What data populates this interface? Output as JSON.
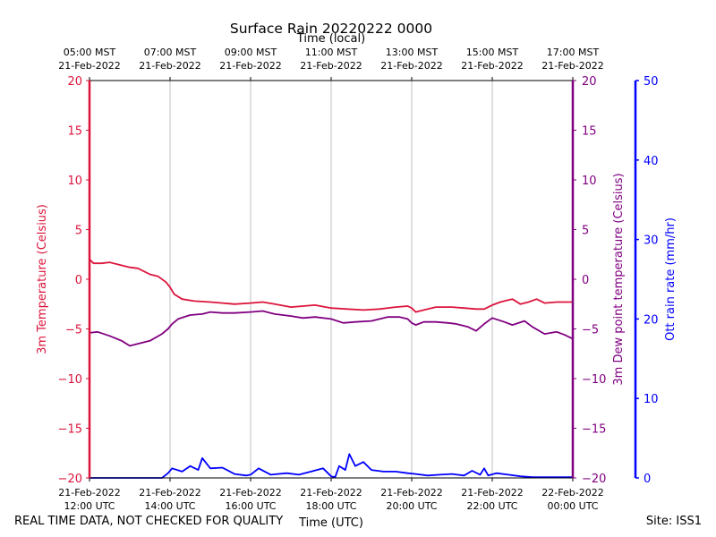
{
  "chart_data": {
    "type": "line",
    "title": "Surface Rain 20220222 0000",
    "top_axis_label": "Time (local)",
    "xlabel": "Time (UTC)",
    "ylabel_left": "3m Temperature (Celsius)",
    "ylabel_right_inner": "3m Dew point temperature (Celsius)",
    "ylabel_right_outer": "Ott rain rate (mm/hr)",
    "xlim_hours_utc": [
      12,
      24
    ],
    "ylim_temperature": [
      -20,
      20
    ],
    "ylim_rain": [
      0,
      50
    ],
    "temp_ticks": [
      20,
      15,
      10,
      5,
      0,
      -5,
      -10,
      -15,
      -20
    ],
    "rain_ticks": [
      50,
      40,
      30,
      20,
      10,
      0
    ],
    "bottom_ticks": [
      {
        "hour": 12,
        "date": "21-Feb-2022",
        "time": "12:00 UTC"
      },
      {
        "hour": 14,
        "date": "21-Feb-2022",
        "time": "14:00 UTC"
      },
      {
        "hour": 16,
        "date": "21-Feb-2022",
        "time": "16:00 UTC"
      },
      {
        "hour": 18,
        "date": "21-Feb-2022",
        "time": "18:00 UTC"
      },
      {
        "hour": 20,
        "date": "21-Feb-2022",
        "time": "20:00 UTC"
      },
      {
        "hour": 22,
        "date": "21-Feb-2022",
        "time": "22:00 UTC"
      },
      {
        "hour": 24,
        "date": "22-Feb-2022",
        "time": "00:00 UTC"
      }
    ],
    "top_ticks": [
      {
        "hour": 12,
        "time": "05:00 MST",
        "date": "21-Feb-2022"
      },
      {
        "hour": 14,
        "time": "07:00 MST",
        "date": "21-Feb-2022"
      },
      {
        "hour": 16,
        "time": "09:00 MST",
        "date": "21-Feb-2022"
      },
      {
        "hour": 18,
        "time": "11:00 MST",
        "date": "21-Feb-2022"
      },
      {
        "hour": 20,
        "time": "13:00 MST",
        "date": "21-Feb-2022"
      },
      {
        "hour": 22,
        "time": "15:00 MST",
        "date": "21-Feb-2022"
      },
      {
        "hour": 24,
        "time": "17:00 MST",
        "date": "21-Feb-2022"
      }
    ],
    "grid": "vertical",
    "series": [
      {
        "name": "3m Temperature",
        "axis": "left",
        "color": "#dc143c",
        "x": [
          12.0,
          12.1,
          12.3,
          12.5,
          12.7,
          13.0,
          13.2,
          13.5,
          13.7,
          13.9,
          14.0,
          14.1,
          14.3,
          14.6,
          15.0,
          15.3,
          15.6,
          16.0,
          16.3,
          16.6,
          17.0,
          17.3,
          17.6,
          18.0,
          18.4,
          18.8,
          19.2,
          19.6,
          19.9,
          20.0,
          20.1,
          20.3,
          20.6,
          21.0,
          21.3,
          21.6,
          21.8,
          22.0,
          22.2,
          22.4,
          22.5,
          22.7,
          22.9,
          23.1,
          23.3,
          23.6,
          24.0
        ],
        "values": [
          2.0,
          1.6,
          1.6,
          1.7,
          1.5,
          1.2,
          1.1,
          0.5,
          0.3,
          -0.3,
          -0.8,
          -1.5,
          -2.0,
          -2.2,
          -2.3,
          -2.4,
          -2.5,
          -2.4,
          -2.3,
          -2.5,
          -2.8,
          -2.7,
          -2.6,
          -2.9,
          -3.0,
          -3.1,
          -3.0,
          -2.8,
          -2.7,
          -2.9,
          -3.3,
          -3.1,
          -2.8,
          -2.8,
          -2.9,
          -3.0,
          -3.0,
          -2.6,
          -2.3,
          -2.1,
          -2.0,
          -2.5,
          -2.3,
          -2.0,
          -2.4,
          -2.3,
          -2.3
        ]
      },
      {
        "name": "3m Dew point temperature",
        "axis": "right_inner",
        "color": "#800080",
        "x": [
          12.0,
          12.2,
          12.5,
          12.8,
          13.0,
          13.2,
          13.5,
          13.8,
          13.95,
          14.05,
          14.2,
          14.5,
          14.8,
          15.0,
          15.3,
          15.6,
          16.0,
          16.3,
          16.6,
          17.0,
          17.3,
          17.6,
          18.0,
          18.3,
          18.6,
          19.0,
          19.4,
          19.7,
          19.9,
          20.0,
          20.1,
          20.3,
          20.6,
          20.9,
          21.1,
          21.4,
          21.6,
          21.8,
          22.0,
          22.3,
          22.5,
          22.8,
          23.0,
          23.3,
          23.6,
          23.8,
          24.0
        ],
        "values": [
          -5.4,
          -5.3,
          -5.7,
          -6.2,
          -6.7,
          -6.5,
          -6.2,
          -5.5,
          -5.0,
          -4.5,
          -4.0,
          -3.6,
          -3.5,
          -3.3,
          -3.4,
          -3.4,
          -3.3,
          -3.2,
          -3.5,
          -3.7,
          -3.9,
          -3.8,
          -4.0,
          -4.4,
          -4.3,
          -4.2,
          -3.8,
          -3.8,
          -4.0,
          -4.4,
          -4.6,
          -4.3,
          -4.3,
          -4.4,
          -4.5,
          -4.8,
          -5.2,
          -4.5,
          -3.9,
          -4.3,
          -4.6,
          -4.2,
          -4.8,
          -5.5,
          -5.3,
          -5.6,
          -6.0
        ]
      },
      {
        "name": "Ott rain rate",
        "axis": "right_outer",
        "color": "#0000ff",
        "x": [
          12.0,
          13.8,
          13.95,
          14.05,
          14.3,
          14.5,
          14.7,
          14.8,
          15.0,
          15.3,
          15.6,
          15.9,
          16.0,
          16.2,
          16.5,
          16.9,
          17.2,
          17.5,
          17.8,
          18.0,
          18.1,
          18.2,
          18.35,
          18.45,
          18.6,
          18.8,
          19.0,
          19.3,
          19.6,
          19.9,
          20.1,
          20.4,
          20.7,
          21.0,
          21.3,
          21.5,
          21.7,
          21.8,
          21.9,
          22.1,
          22.4,
          22.7,
          23.0,
          24.0
        ],
        "values": [
          0,
          0,
          0.6,
          1.2,
          0.8,
          1.5,
          1.0,
          2.5,
          1.2,
          1.3,
          0.5,
          0.3,
          0.4,
          1.2,
          0.4,
          0.6,
          0.4,
          0.8,
          1.2,
          0.2,
          0.1,
          1.5,
          1.0,
          3.0,
          1.5,
          2.0,
          1.0,
          0.8,
          0.8,
          0.6,
          0.5,
          0.3,
          0.4,
          0.5,
          0.3,
          0.9,
          0.4,
          1.2,
          0.3,
          0.6,
          0.4,
          0.2,
          0.1,
          0.1
        ]
      }
    ]
  },
  "footer": {
    "left_note": "REAL TIME DATA, NOT CHECKED FOR QUALITY",
    "site": "Site: ISS1"
  }
}
